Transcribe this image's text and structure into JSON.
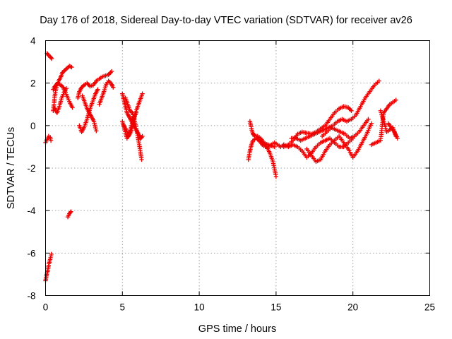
{
  "chart_data": {
    "type": "scatter",
    "title": "Day 176 of 2018, Sidereal Day-to-day VTEC variation (SDTVAR) for receiver av26",
    "xlabel": "GPS time / hours",
    "ylabel": "SDTVAR / TECUs",
    "xlim": [
      0,
      25
    ],
    "ylim": [
      -8,
      4
    ],
    "xticks": [
      0,
      5,
      10,
      15,
      20,
      25
    ],
    "yticks": [
      -8,
      -6,
      -4,
      -2,
      0,
      2,
      4
    ],
    "grid": true,
    "marker": "+",
    "color": "#ee0000",
    "series": [
      {
        "name": "t1",
        "x": [
          0.0,
          0.1,
          0.2,
          0.3,
          0.35
        ],
        "y": [
          -0.8,
          -0.65,
          -0.5,
          -0.55,
          -0.7
        ]
      },
      {
        "name": "t2",
        "x": [
          0.1,
          0.2,
          0.3,
          0.4
        ],
        "y": [
          3.4,
          3.3,
          3.25,
          3.15
        ]
      },
      {
        "name": "t3",
        "x": [
          0.0,
          0.08,
          0.15,
          0.22,
          0.3,
          0.38
        ],
        "y": [
          -7.3,
          -7.0,
          -6.8,
          -6.5,
          -6.3,
          -6.05
        ]
      },
      {
        "name": "t4",
        "x": [
          1.45,
          1.55,
          1.65
        ],
        "y": [
          -4.3,
          -4.15,
          -4.05
        ]
      },
      {
        "name": "t5",
        "x": [
          0.5,
          0.55,
          0.6,
          0.7,
          0.85,
          1.0,
          1.1,
          1.25,
          1.4,
          1.55,
          1.7
        ],
        "y": [
          0.7,
          1.0,
          1.4,
          1.8,
          2.1,
          2.3,
          2.5,
          2.6,
          2.7,
          2.8,
          2.75
        ]
      },
      {
        "name": "t6",
        "x": [
          0.5,
          0.65,
          0.8,
          1.0,
          1.15,
          1.3,
          1.45,
          1.6,
          1.75
        ],
        "y": [
          1.7,
          1.9,
          2.0,
          1.9,
          1.8,
          1.55,
          1.3,
          1.05,
          0.85
        ]
      },
      {
        "name": "t7",
        "x": [
          0.6,
          0.75,
          0.9,
          1.05,
          1.2,
          1.35
        ],
        "y": [
          0.8,
          0.6,
          0.9,
          1.3,
          1.55,
          1.75
        ]
      },
      {
        "name": "t8",
        "x": [
          2.1,
          2.2,
          2.35,
          2.5,
          2.7,
          2.9,
          3.1,
          3.3,
          3.5,
          3.7,
          3.9,
          4.1,
          4.3
        ],
        "y": [
          1.3,
          1.6,
          1.8,
          1.9,
          2.0,
          1.85,
          1.9,
          2.1,
          2.2,
          2.3,
          2.35,
          2.4,
          2.55
        ]
      },
      {
        "name": "t9",
        "x": [
          2.2,
          2.35,
          2.5,
          2.7,
          2.9,
          3.1,
          3.25,
          3.4
        ],
        "y": [
          0.0,
          -0.3,
          -0.1,
          0.3,
          0.8,
          1.2,
          1.5,
          1.7
        ]
      },
      {
        "name": "t10",
        "x": [
          2.4,
          2.55,
          2.7,
          2.85,
          3.0,
          3.15,
          3.3
        ],
        "y": [
          1.4,
          1.1,
          0.8,
          0.6,
          0.4,
          0.2,
          -0.25
        ]
      },
      {
        "name": "t11",
        "x": [
          3.5,
          3.65,
          3.8,
          3.95,
          4.1,
          4.25,
          4.4
        ],
        "y": [
          1.0,
          1.3,
          1.6,
          1.95,
          2.1,
          2.0,
          1.8
        ]
      },
      {
        "name": "t12",
        "x": [
          5.0,
          5.1,
          5.2,
          5.3,
          5.45,
          5.6,
          5.75,
          5.9,
          6.05,
          6.2,
          6.3
        ],
        "y": [
          1.5,
          1.2,
          0.9,
          0.6,
          0.4,
          0.2,
          0.0,
          -0.2,
          -0.4,
          -0.6,
          -0.5
        ]
      },
      {
        "name": "t13",
        "x": [
          5.1,
          5.25,
          5.4,
          5.55,
          5.7,
          5.85,
          6.0,
          6.15,
          6.3
        ],
        "y": [
          0.0,
          -0.2,
          -0.5,
          -0.3,
          0.1,
          0.6,
          0.9,
          1.2,
          1.5
        ]
      },
      {
        "name": "t14",
        "x": [
          5.2,
          5.35,
          5.5,
          5.65,
          5.8,
          5.95,
          6.1,
          6.25
        ],
        "y": [
          1.3,
          1.0,
          0.7,
          0.6,
          0.2,
          -0.3,
          -0.9,
          -1.6
        ]
      },
      {
        "name": "t15",
        "x": [
          5.0,
          5.15,
          5.3,
          5.45,
          5.6,
          5.75,
          5.9
        ],
        "y": [
          0.2,
          -0.2,
          -0.6,
          -0.4,
          0.0,
          0.4,
          0.6
        ]
      },
      {
        "name": "t16",
        "x": [
          13.2,
          13.3,
          13.4,
          13.5,
          13.7,
          13.9,
          14.1,
          14.3,
          14.5,
          14.7,
          14.9
        ],
        "y": [
          -1.6,
          -1.2,
          -0.9,
          -0.7,
          -0.6,
          -0.7,
          -0.8,
          -0.85,
          -0.9,
          -0.95,
          -1.0
        ]
      },
      {
        "name": "t17",
        "x": [
          13.3,
          13.45,
          13.6,
          13.8,
          14.0,
          14.2,
          14.4,
          14.6,
          14.8,
          15.0
        ],
        "y": [
          0.2,
          -0.3,
          -0.5,
          -0.5,
          -0.6,
          -0.8,
          -1.0,
          -1.3,
          -1.7,
          -2.4
        ]
      },
      {
        "name": "t18",
        "x": [
          13.5,
          13.7,
          13.9,
          14.1,
          14.3,
          14.5,
          14.7,
          14.9,
          15.1,
          15.3,
          15.5
        ],
        "y": [
          -0.4,
          -0.5,
          -0.7,
          -0.9,
          -1.0,
          -1.0,
          -0.9,
          -0.8,
          -0.9,
          -1.0,
          -0.9
        ]
      },
      {
        "name": "t19",
        "x": [
          15.5,
          15.8,
          16.1,
          16.4,
          16.7,
          17.0,
          17.3,
          17.6,
          17.9,
          18.2,
          18.5,
          18.8,
          19.1,
          19.4,
          19.7,
          19.9
        ],
        "y": [
          -1.0,
          -0.9,
          -0.7,
          -0.4,
          -0.3,
          -0.35,
          -0.4,
          -0.3,
          -0.15,
          0.0,
          0.3,
          0.6,
          0.8,
          0.9,
          0.85,
          0.7
        ]
      },
      {
        "name": "t20",
        "x": [
          15.5,
          15.8,
          16.1,
          16.4,
          16.7,
          17.0,
          17.3,
          17.6,
          17.9,
          18.2,
          18.5,
          18.8,
          19.1,
          19.4,
          19.7,
          20.0
        ],
        "y": [
          -0.9,
          -1.0,
          -0.9,
          -1.0,
          -1.2,
          -1.5,
          -1.3,
          -1.0,
          -0.8,
          -0.7,
          -0.6,
          -0.8,
          -1.0,
          -1.0,
          -0.8,
          -0.6
        ]
      },
      {
        "name": "t21",
        "x": [
          16.0,
          16.3,
          16.6,
          16.9,
          17.2,
          17.5,
          17.8,
          18.1,
          18.4,
          18.7,
          19.0,
          19.3,
          19.6,
          19.9,
          20.2,
          20.5,
          20.8,
          21.1,
          21.4,
          21.7
        ],
        "y": [
          -0.6,
          -0.6,
          -0.7,
          -0.6,
          -0.5,
          -0.4,
          -0.3,
          -0.2,
          -0.1,
          0.0,
          0.2,
          0.3,
          0.2,
          0.3,
          0.5,
          0.9,
          1.3,
          1.6,
          1.9,
          2.1
        ]
      },
      {
        "name": "t22",
        "x": [
          17.0,
          17.3,
          17.6,
          17.9,
          18.2,
          18.5,
          18.8,
          19.1,
          19.4,
          19.7,
          20.0,
          20.3,
          20.6,
          20.9,
          21.2
        ],
        "y": [
          -1.1,
          -1.4,
          -1.7,
          -1.6,
          -1.2,
          -0.9,
          -0.7,
          -0.5,
          -0.8,
          -1.1,
          -1.5,
          -1.2,
          -0.8,
          -0.4,
          0.1
        ]
      },
      {
        "name": "t23",
        "x": [
          18.0,
          18.3,
          18.6,
          18.9,
          19.2,
          19.5,
          19.8,
          20.1,
          20.4,
          20.7,
          21.0
        ],
        "y": [
          -0.5,
          -0.3,
          -0.1,
          -0.2,
          -0.3,
          -0.4,
          -0.6,
          -0.5,
          -0.3,
          0.0,
          0.3
        ]
      },
      {
        "name": "t24",
        "x": [
          21.2,
          21.5,
          21.8,
          22.0,
          22.2,
          22.4,
          22.6,
          22.8
        ],
        "y": [
          -0.9,
          -0.8,
          -0.7,
          0.6,
          0.8,
          1.0,
          1.1,
          1.2
        ]
      },
      {
        "name": "t25",
        "x": [
          21.8,
          22.0,
          22.2,
          22.4,
          22.6,
          22.8
        ],
        "y": [
          0.7,
          0.2,
          -0.3,
          -0.2,
          -0.1,
          -0.5
        ]
      },
      {
        "name": "t26",
        "x": [
          22.3,
          22.5,
          22.7,
          22.9
        ],
        "y": [
          0.1,
          -0.1,
          -0.3,
          -0.6
        ]
      }
    ]
  }
}
